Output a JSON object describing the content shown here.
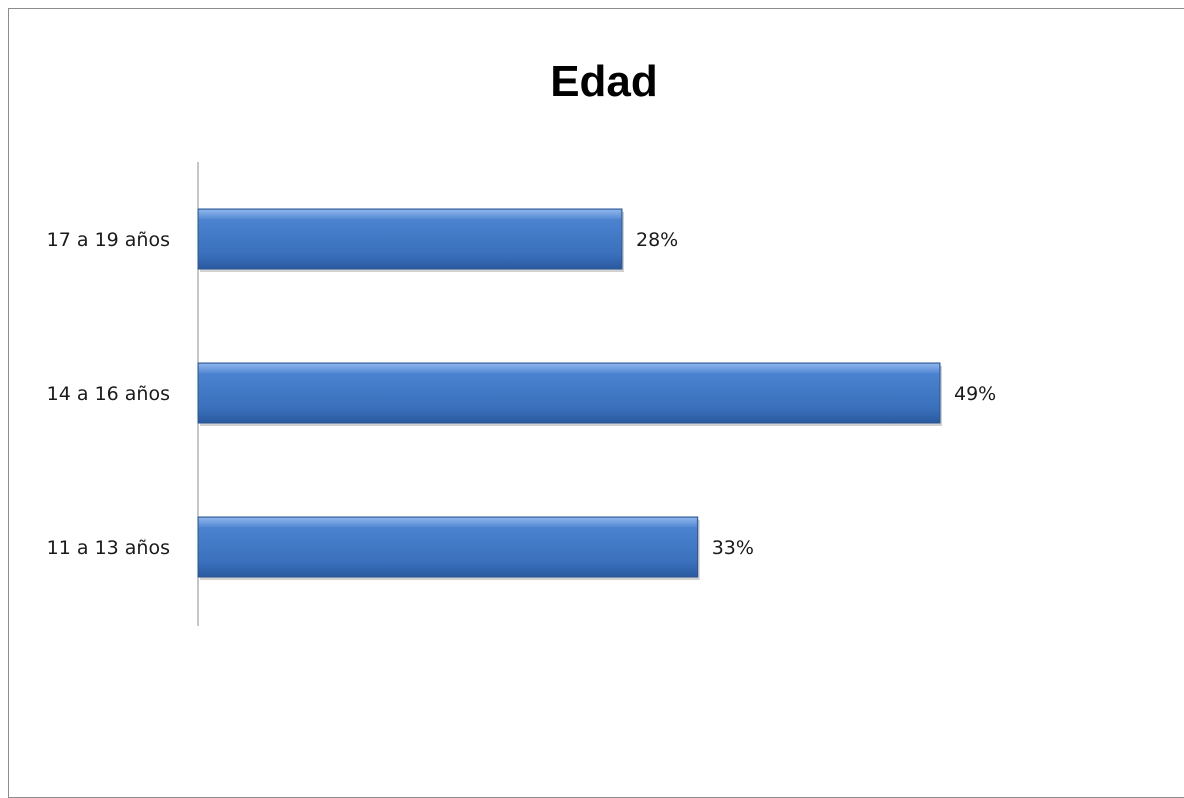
{
  "chart_data": {
    "type": "bar",
    "orientation": "horizontal",
    "title": "Edad",
    "categories": [
      "17 a 19 años",
      "14 a 16 años",
      "11 a 13 años"
    ],
    "values": [
      28,
      49,
      33
    ],
    "data_labels": [
      "28%",
      "49%",
      "33%"
    ],
    "unit": "%",
    "xlim": [
      0,
      50
    ],
    "grid": false,
    "legend": "none",
    "bar_color": "#3f78c6"
  }
}
